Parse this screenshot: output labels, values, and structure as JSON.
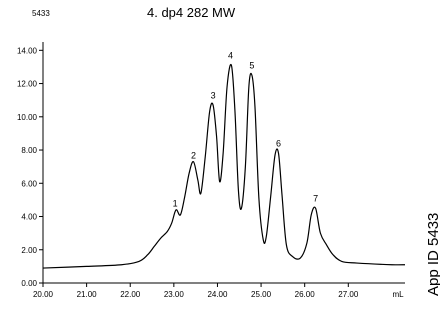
{
  "header": {
    "app_number": "5433",
    "title": "4. dp4  282 MW"
  },
  "side_label": "App ID 5433",
  "chart_data": {
    "type": "line",
    "title": "4. dp4  282 MW",
    "xlabel": "mL",
    "ylabel": "",
    "xlim": [
      20.0,
      28.3
    ],
    "ylim": [
      0.0,
      14.5
    ],
    "grid": false,
    "x_ticks": [
      "20.00",
      "21.00",
      "22.00",
      "23.00",
      "24.00",
      "25.00",
      "26.00",
      "27.00"
    ],
    "x_unit_label": "mL",
    "y_ticks": [
      "0.00",
      "2.00",
      "4.00",
      "6.00",
      "8.00",
      "10.00",
      "12.00",
      "14.00"
    ],
    "series": [
      {
        "points": [
          [
            20.0,
            0.9
          ],
          [
            21.0,
            1.0
          ],
          [
            21.8,
            1.1
          ],
          [
            22.2,
            1.3
          ],
          [
            22.4,
            1.7
          ],
          [
            22.55,
            2.2
          ],
          [
            22.7,
            2.7
          ],
          [
            22.85,
            3.1
          ],
          [
            22.95,
            3.6
          ],
          [
            23.05,
            4.4
          ],
          [
            23.15,
            4.1
          ],
          [
            23.25,
            5.2
          ],
          [
            23.35,
            6.6
          ],
          [
            23.45,
            7.3
          ],
          [
            23.55,
            6.2
          ],
          [
            23.62,
            5.4
          ],
          [
            23.72,
            7.6
          ],
          [
            23.82,
            10.3
          ],
          [
            23.9,
            10.7
          ],
          [
            23.98,
            8.8
          ],
          [
            24.05,
            6.1
          ],
          [
            24.13,
            7.8
          ],
          [
            24.22,
            11.8
          ],
          [
            24.32,
            13.1
          ],
          [
            24.4,
            10.4
          ],
          [
            24.48,
            5.6
          ],
          [
            24.55,
            4.5
          ],
          [
            24.64,
            7.0
          ],
          [
            24.72,
            11.8
          ],
          [
            24.79,
            12.5
          ],
          [
            24.86,
            10.6
          ],
          [
            24.95,
            5.1
          ],
          [
            25.05,
            2.6
          ],
          [
            25.12,
            2.8
          ],
          [
            25.22,
            5.2
          ],
          [
            25.32,
            7.7
          ],
          [
            25.4,
            7.8
          ],
          [
            25.48,
            5.3
          ],
          [
            25.58,
            2.3
          ],
          [
            25.72,
            1.6
          ],
          [
            25.9,
            1.5
          ],
          [
            26.05,
            2.4
          ],
          [
            26.15,
            4.1
          ],
          [
            26.25,
            4.5
          ],
          [
            26.36,
            3.0
          ],
          [
            26.5,
            2.3
          ],
          [
            26.65,
            1.7
          ],
          [
            26.85,
            1.3
          ],
          [
            27.2,
            1.2
          ],
          [
            28.0,
            1.1
          ],
          [
            28.3,
            1.1
          ]
        ]
      }
    ],
    "annotations": [
      {
        "text": "1",
        "x": 23.03,
        "y": 4.6
      },
      {
        "text": "2",
        "x": 23.45,
        "y": 7.5
      },
      {
        "text": "3",
        "x": 23.9,
        "y": 11.1
      },
      {
        "text": "4",
        "x": 24.3,
        "y": 13.5
      },
      {
        "text": "5",
        "x": 24.79,
        "y": 12.9
      },
      {
        "text": "6",
        "x": 25.4,
        "y": 8.2
      },
      {
        "text": "7",
        "x": 26.25,
        "y": 4.9
      }
    ]
  }
}
